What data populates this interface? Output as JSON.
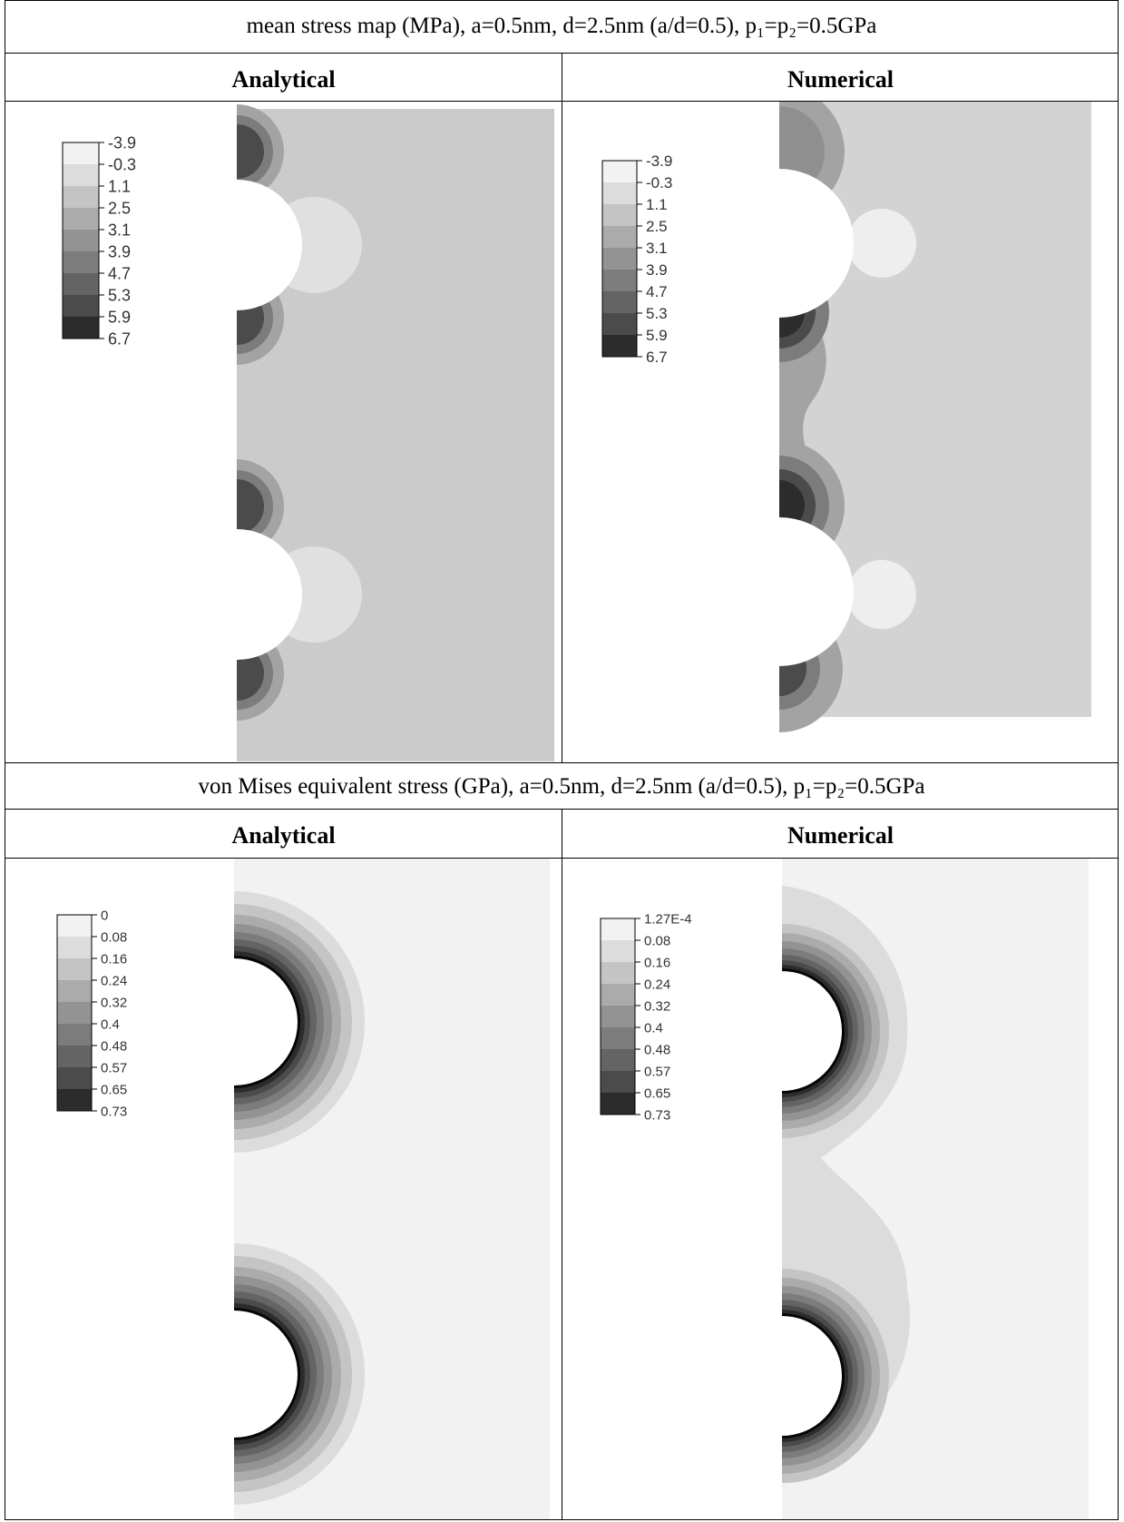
{
  "mean_stress": {
    "caption": "mean stress map (MPa), a=0.5nm, d=2.5nm (a/d=0.5), p₁=p₂=0.5GPa",
    "col_left": "Analytical",
    "col_right": "Numerical",
    "legend_analytical": [
      "-3.9",
      "-0.3",
      "1.1",
      "2.5",
      "3.1",
      "3.9",
      "4.7",
      "5.3",
      "5.9",
      "6.7"
    ],
    "legend_numerical": [
      "-3.9",
      "-0.3",
      "1.1",
      "2.5",
      "3.1",
      "3.9",
      "4.7",
      "5.3",
      "5.9",
      "6.7"
    ]
  },
  "von_mises": {
    "caption": "von Mises equivalent stress  (GPa), a=0.5nm, d=2.5nm (a/d=0.5), p₁=p₂=0.5GPa",
    "col_left": "Analytical",
    "col_right": "Numerical",
    "legend_analytical": [
      "0",
      "0.08",
      "0.16",
      "0.24",
      "0.32",
      "0.4",
      "0.48",
      "0.57",
      "0.65",
      "0.73"
    ],
    "legend_numerical": [
      "1.27E-4",
      "0.08",
      "0.16",
      "0.24",
      "0.32",
      "0.4",
      "0.48",
      "0.57",
      "0.65",
      "0.73"
    ]
  },
  "colors": {
    "legend_fills": [
      "#f2f2f2",
      "#dcdcdc",
      "#c4c4c4",
      "#ababab",
      "#939393",
      "#7c7c7c",
      "#646464",
      "#4b4b4b",
      "#2c2c2c",
      "#050505"
    ],
    "mean_background": "#cbcbcb",
    "vm_background": "#f3f2f2"
  }
}
